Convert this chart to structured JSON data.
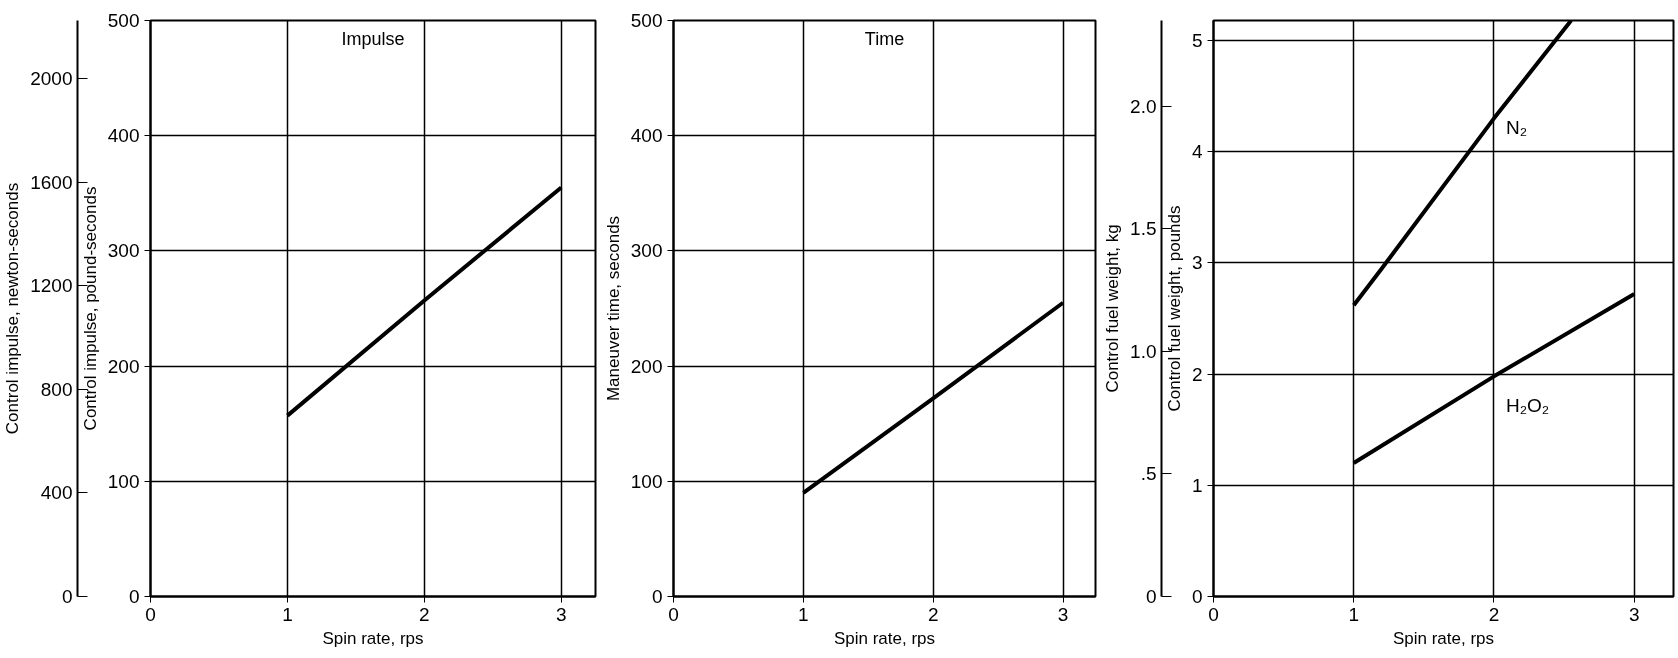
{
  "chart_data": [
    {
      "type": "line",
      "annotations": [
        "Impulse"
      ],
      "xlabel": "Spin rate, rps",
      "ylabel": "Control impulse, pound-seconds",
      "y2label": "Control impulse, newton-seconds",
      "x": [
        1,
        2,
        3
      ],
      "series": [
        {
          "color": "#000000",
          "values": [
            157,
            257,
            355
          ]
        }
      ],
      "xlim": [
        0,
        3.25
      ],
      "xticks": [
        0,
        1,
        2,
        3
      ],
      "ylim": [
        0,
        500
      ],
      "yticks": [
        0,
        100,
        200,
        300,
        400,
        500
      ],
      "y2lim": [
        0,
        2224
      ],
      "y2ticks": [
        0,
        400,
        800,
        1200,
        1600,
        2000
      ],
      "grid": true
    },
    {
      "type": "line",
      "annotations": [
        "Time"
      ],
      "xlabel": "Spin rate, rps",
      "ylabel": "Maneuver time, seconds",
      "x": [
        1,
        2,
        3
      ],
      "series": [
        {
          "color": "#000000",
          "values": [
            90,
            172,
            255
          ]
        }
      ],
      "xlim": [
        0,
        3.25
      ],
      "xticks": [
        0,
        1,
        2,
        3
      ],
      "ylim": [
        0,
        500
      ],
      "yticks": [
        0,
        100,
        200,
        300,
        400,
        500
      ],
      "grid": true
    },
    {
      "type": "line",
      "xlabel": "Spin rate, rps",
      "ylabel": "Control fuel weight, pounds",
      "y2label": "Control fuel weight, kg",
      "series": [
        {
          "name": "N₂",
          "color": "#000000",
          "x": [
            1,
            1.2,
            2,
            2.55
          ],
          "values": [
            2.62,
            2.95,
            4.3,
            5.18
          ]
        },
        {
          "name": "H₂O₂",
          "color": "#000000",
          "x": [
            1,
            2,
            3
          ],
          "values": [
            1.2,
            1.98,
            2.72
          ]
        }
      ],
      "xlim": [
        0,
        3.28
      ],
      "xticks": [
        0,
        1,
        2,
        3
      ],
      "ylim": [
        0,
        5.18
      ],
      "yticks": [
        0,
        1,
        2,
        3,
        4,
        5
      ],
      "y2lim": [
        0,
        2.35
      ],
      "y2ticks": [
        0,
        {
          "value": 0.5,
          "label": ".5"
        },
        {
          "value": 1.0,
          "label": "1.0"
        },
        {
          "value": 1.5,
          "label": "1.5"
        },
        {
          "value": 2.0,
          "label": "2.0"
        }
      ],
      "grid": true
    }
  ]
}
